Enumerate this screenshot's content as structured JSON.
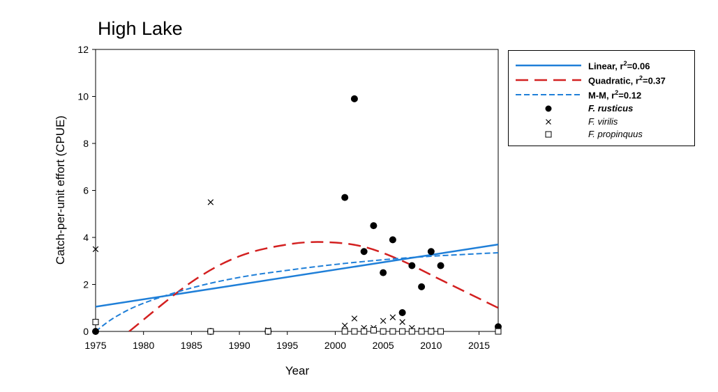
{
  "chart_data": {
    "type": "scatter",
    "title": "High Lake",
    "xlabel": "Year",
    "ylabel": "Catch-per-unit effort (CPUE)",
    "xlim": [
      1975,
      2017
    ],
    "ylim": [
      0,
      12
    ],
    "x_ticks": [
      1975,
      1980,
      1985,
      1990,
      1995,
      2000,
      2005,
      2010,
      2015
    ],
    "y_ticks": [
      0,
      2,
      4,
      6,
      8,
      10,
      12
    ],
    "grid": false,
    "legend_position": "outside-right",
    "series": [
      {
        "name": "F. rusticus",
        "marker": "filled-circle",
        "x": [
          1975,
          1987,
          1993,
          2001,
          2002,
          2003,
          2004,
          2005,
          2006,
          2007,
          2008,
          2009,
          2010,
          2011,
          2017
        ],
        "y": [
          0,
          0,
          0,
          5.7,
          9.9,
          3.4,
          4.5,
          2.5,
          3.9,
          0.8,
          2.8,
          1.9,
          3.4,
          2.8,
          0.2
        ]
      },
      {
        "name": "F. virilis",
        "marker": "x",
        "x": [
          1975,
          1987,
          1993,
          2001,
          2002,
          2003,
          2004,
          2005,
          2006,
          2007,
          2008,
          2009,
          2010,
          2011,
          2017
        ],
        "y": [
          3.5,
          5.5,
          0.05,
          0.25,
          0.55,
          0.15,
          0.15,
          0.45,
          0.6,
          0.4,
          0.15,
          0.05,
          0.05,
          0.0,
          0.0
        ]
      },
      {
        "name": "F. propinquus",
        "marker": "open-square",
        "x": [
          1975,
          1987,
          1993,
          2001,
          2002,
          2003,
          2004,
          2005,
          2006,
          2007,
          2008,
          2009,
          2010,
          2011,
          2017
        ],
        "y": [
          0.4,
          0,
          0,
          0,
          0,
          0,
          0.05,
          0,
          0,
          0,
          0,
          0,
          0,
          0,
          0
        ]
      }
    ],
    "fits": [
      {
        "name": "Linear, r²=0.06",
        "style": "solid",
        "color": "#1f7fd8",
        "x": [
          1975,
          2017
        ],
        "y": [
          1.05,
          3.7
        ]
      },
      {
        "name": "Quadratic, r²=0.37",
        "style": "long-dash",
        "color": "#d32020",
        "x": [
          1978.5,
          1985,
          1990,
          1995,
          1999,
          2003,
          2007,
          2011,
          2017
        ],
        "y": [
          0,
          2.1,
          3.2,
          3.7,
          3.8,
          3.6,
          3.0,
          2.2,
          1.0
        ]
      },
      {
        "name": "M-M, r²=0.12",
        "style": "short-dash",
        "color": "#1f7fd8",
        "x": [
          1975,
          1977,
          1980,
          1985,
          1990,
          1995,
          2000,
          2005,
          2010,
          2017
        ],
        "y": [
          0,
          0.6,
          1.2,
          1.85,
          2.3,
          2.6,
          2.85,
          3.05,
          3.2,
          3.35
        ]
      }
    ]
  },
  "legend": {
    "linear": {
      "label": "Linear, r",
      "sup": "2",
      "value": "=0.06"
    },
    "quadratic": {
      "label": "Quadratic, r",
      "sup": "2",
      "value": "=0.37"
    },
    "mm": {
      "label": "M-M, r",
      "sup": "2",
      "value": "=0.12"
    },
    "rusticus": "F. rusticus",
    "virilis": "F. virilis",
    "propinquus": "F. propinquus"
  },
  "colors": {
    "linear": "#1f7fd8",
    "quadratic": "#d32020",
    "mm": "#1f7fd8"
  }
}
